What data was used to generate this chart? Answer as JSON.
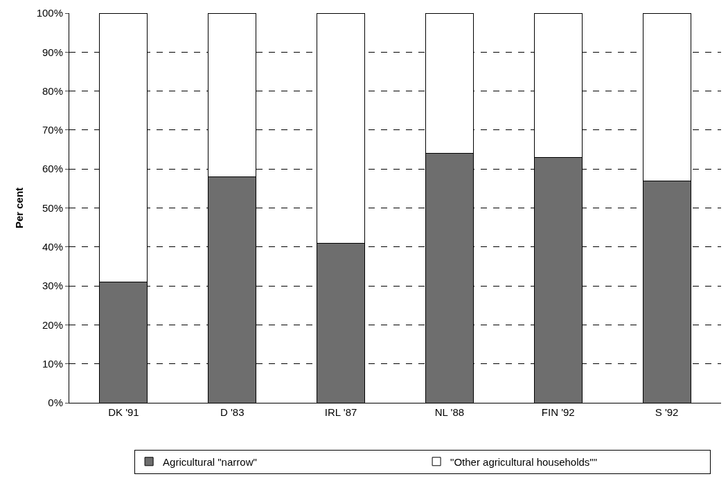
{
  "chart_data": {
    "type": "bar",
    "stacked": true,
    "ylabel": "Per cent",
    "categories": [
      "DK '91",
      "D '83",
      "IRL '87",
      "NL '88",
      "FIN '92",
      "S '92"
    ],
    "series": [
      {
        "name": "Agricultural \"narrow\"",
        "color": "#6e6e6e",
        "values": [
          31,
          58,
          41,
          64,
          63,
          57
        ]
      },
      {
        "name": "\"Other agricultural households\"\"",
        "color": "#ffffff",
        "values": [
          69,
          42,
          59,
          36,
          37,
          43
        ]
      }
    ],
    "ylim": [
      0,
      100
    ],
    "yticks": [
      {
        "value": 0,
        "label": "0%"
      },
      {
        "value": 10,
        "label": "10%"
      },
      {
        "value": 20,
        "label": "20%"
      },
      {
        "value": 30,
        "label": "30%"
      },
      {
        "value": 40,
        "label": "40%"
      },
      {
        "value": 50,
        "label": "50%"
      },
      {
        "value": 60,
        "label": "60%"
      },
      {
        "value": 70,
        "label": "70%"
      },
      {
        "value": 80,
        "label": "80%"
      },
      {
        "value": 90,
        "label": "90%"
      },
      {
        "value": 100,
        "label": "100%"
      }
    ],
    "grid": "y",
    "legend": "bottom"
  }
}
